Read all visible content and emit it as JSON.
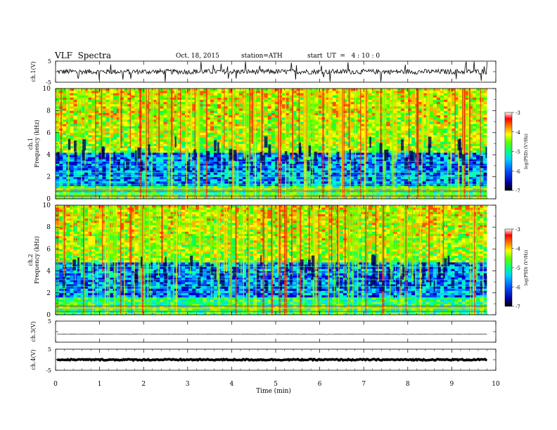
{
  "header": {
    "title": "VLF  Spectra",
    "date": "Oct. 18, 2015",
    "station": "station=ATH",
    "start": "start  UT  =   4 : 10 : 0"
  },
  "chart_data": [
    {
      "type": "line",
      "panel": "ch1-waveform",
      "ylabel": "ch.1(V)",
      "ylim": [
        -5,
        5
      ],
      "yticks": [
        "5",
        "-5"
      ],
      "xlim": [
        0,
        10
      ],
      "series": [
        {
          "baseline": 0,
          "noise_amplitude": 1.2,
          "spike_amplitude": 5
        }
      ],
      "color": "#000000"
    },
    {
      "type": "heatmap",
      "panel": "ch1-spectrogram",
      "ylabel": "ch.1\nFrequency  (kHz)",
      "ylim": [
        0,
        10
      ],
      "yticks": [
        "0",
        "2",
        "4",
        "6",
        "8",
        "10"
      ],
      "xlim": [
        0,
        9.8
      ],
      "colorbar": {
        "label": "log(PSD) (V²/Hz)",
        "range": [
          -7,
          -3
        ],
        "ticks": [
          "-7",
          "-6",
          "-5",
          "-4",
          "-3"
        ]
      },
      "description_of_values": "High PSD (-4 to -3) above 4 kHz with bursts; low PSD (-7 to -6) from 1 to 4 kHz; narrowband lines near 0-1 kHz"
    },
    {
      "type": "heatmap",
      "panel": "ch2-spectrogram",
      "ylabel": "ch.2\nFrequency  (kHz)",
      "ylim": [
        0,
        10
      ],
      "yticks": [
        "0",
        "2",
        "4",
        "6",
        "8",
        "10"
      ],
      "xlim": [
        0,
        9.8
      ],
      "colorbar": {
        "label": "log(PSD) (V²/Hz)",
        "range": [
          -7,
          -3
        ],
        "ticks": [
          "-7",
          "-6",
          "-5",
          "-4",
          "-3"
        ]
      },
      "description_of_values": "High PSD (-4 to -3) above 5 kHz with bursts; low PSD (-7 to -6) from 1.5 to 4.5 kHz; strong lines near 0-1 kHz"
    },
    {
      "type": "line",
      "panel": "ch3-waveform",
      "ylabel": "ch.3(V)",
      "ylim": [
        -5,
        5
      ],
      "yticks": [
        "5"
      ],
      "xlim": [
        0,
        10
      ],
      "series": [
        {
          "baseline": -1.2,
          "noise_amplitude": 0.1
        }
      ]
    },
    {
      "type": "line",
      "panel": "ch4-waveform",
      "ylabel": "ch.4(V)",
      "ylim": [
        -5,
        5
      ],
      "yticks": [
        "5",
        "-5"
      ],
      "xlim": [
        0,
        10
      ],
      "series": [
        {
          "baseline": 0,
          "noise_amplitude": 0.3
        }
      ]
    }
  ],
  "xaxis": {
    "label": "Time  (min)",
    "ticks": [
      "0",
      "1",
      "2",
      "3",
      "4",
      "5",
      "6",
      "7",
      "8",
      "9",
      "10"
    ]
  }
}
